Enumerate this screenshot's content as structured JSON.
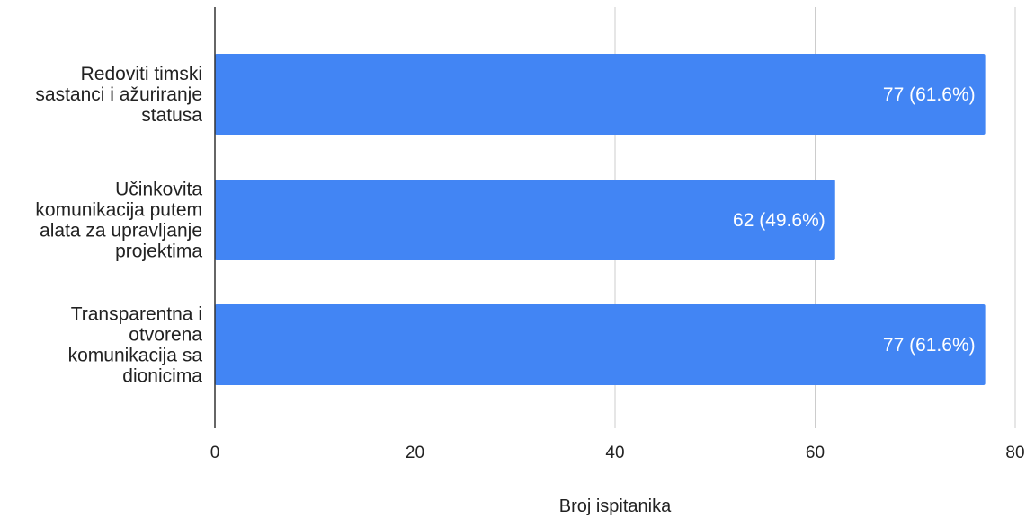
{
  "chart_data": {
    "type": "bar",
    "orientation": "horizontal",
    "categories": [
      [
        "Redoviti timski",
        "sastanci i ažuriranje",
        "statusa"
      ],
      [
        "Učinkovita",
        "komunikacija putem",
        "alata za upravljanje",
        "projektima"
      ],
      [
        "Transparentna i",
        "otvorena",
        "komunikacija sa",
        "dionicima"
      ]
    ],
    "values": [
      77,
      62,
      77
    ],
    "data_labels": [
      "77 (61.6%)",
      "62 (49.6%)",
      "77 (61.6%)"
    ],
    "xlabel": "Broj ispitanika",
    "ylabel": "",
    "xlim": [
      0,
      80
    ],
    "xticks": [
      "0",
      "20",
      "40",
      "60",
      "80"
    ],
    "grid": true,
    "legend": "none",
    "colors": {
      "bar": "#4285f4",
      "grid": "#cccccc",
      "axis": "#333333",
      "text": "#222222",
      "data_label": "#ffffff"
    }
  }
}
